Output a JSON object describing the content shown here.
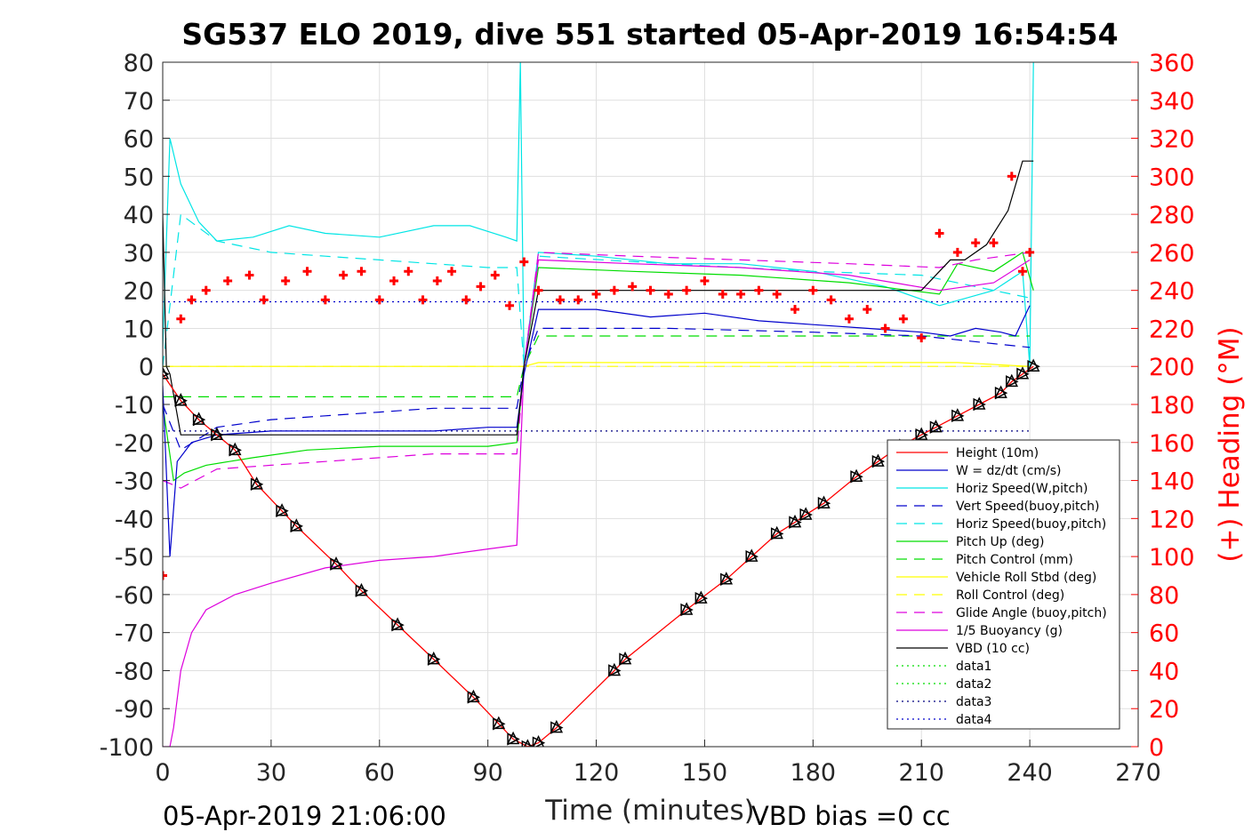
{
  "chart_data": {
    "type": "line",
    "title": "SG537 ELO 2019, dive 551 started 05-Apr-2019 16:54:54",
    "xlabel": "Time (minutes)",
    "ylabel_right": "(+) Heading (°M)",
    "xlim": [
      0,
      270
    ],
    "ylim_left": [
      -100,
      80
    ],
    "ylim_right": [
      0,
      360
    ],
    "xticks": [
      "0",
      "30",
      "60",
      "90",
      "120",
      "150",
      "180",
      "210",
      "240",
      "270"
    ],
    "yticks_left": [
      "80",
      "70",
      "60",
      "50",
      "40",
      "30",
      "20",
      "10",
      "0",
      "-10",
      "-20",
      "-30",
      "-40",
      "-50",
      "-60",
      "-70",
      "-80",
      "-90",
      "-100"
    ],
    "yticks_right": [
      "360",
      "340",
      "320",
      "300",
      "280",
      "260",
      "240",
      "220",
      "200",
      "180",
      "160",
      "140",
      "120",
      "100",
      "80",
      "60",
      "40",
      "20",
      "0"
    ],
    "grid": true,
    "legend_position": "lower-right",
    "footer_left": "05-Apr-2019 21:06:00",
    "footer_right": "VBD bias =0 cc",
    "colors": {
      "height": "#ff0000",
      "w": "#0000cc",
      "horiz": "#00e5e5",
      "pitch": "#00dd00",
      "roll": "#ffff00",
      "glide": "#dd00dd",
      "buoy": "#dd00dd",
      "vbd": "#000000",
      "heading": "#ff0000",
      "data3": "#000080"
    },
    "series": [
      {
        "key": "height",
        "name": "Height (10m)",
        "color": "#ff0000",
        "dash": "",
        "x": [
          0,
          5,
          10,
          15,
          20,
          26,
          33,
          37,
          48,
          55,
          65,
          75,
          86,
          93,
          97,
          101,
          104,
          109,
          125,
          128,
          145,
          149,
          156,
          163,
          170,
          175,
          178,
          183,
          192,
          198,
          204,
          210,
          214,
          220,
          226,
          232,
          235,
          238,
          241
        ],
        "y": [
          -2,
          -9,
          -14,
          -18,
          -22,
          -31,
          -38,
          -42,
          -52,
          -59,
          -68,
          -77,
          -87,
          -94,
          -98,
          -100,
          -99,
          -95,
          -80,
          -77,
          -64,
          -61,
          -56,
          -50,
          -44,
          -41,
          -39,
          -36,
          -29,
          -25,
          -21,
          -18,
          -16,
          -13,
          -10,
          -7,
          -4,
          -2,
          0
        ]
      },
      {
        "key": "w",
        "name": "W = dz/dt (cm/s)",
        "color": "#0000cc",
        "dash": "",
        "x": [
          0,
          2,
          4,
          8,
          15,
          30,
          45,
          60,
          75,
          90,
          98,
          100,
          104,
          120,
          135,
          150,
          165,
          180,
          195,
          210,
          218,
          225,
          232,
          236,
          240
        ],
        "y": [
          -5,
          -50,
          -25,
          -20,
          -18,
          -17,
          -17,
          -17,
          -17,
          -16,
          -16,
          -2,
          15,
          15,
          13,
          14,
          12,
          11,
          10,
          9,
          8,
          10,
          9,
          8,
          16
        ]
      },
      {
        "key": "horiz_w",
        "name": "Horiz Speed(W,pitch)",
        "color": "#00e5e5",
        "dash": "",
        "x": [
          0,
          2,
          5,
          10,
          15,
          25,
          35,
          45,
          60,
          75,
          85,
          95,
          98,
          99,
          100,
          104,
          120,
          140,
          160,
          180,
          200,
          215,
          230,
          238,
          240,
          241
        ],
        "y": [
          5,
          60,
          48,
          38,
          33,
          34,
          37,
          35,
          34,
          37,
          37,
          34,
          33,
          80,
          0,
          30,
          29,
          27,
          27,
          25,
          21,
          16,
          20,
          25,
          0,
          80
        ]
      },
      {
        "key": "vert_buoy",
        "name": "Vert Speed(buoy,pitch)",
        "color": "#0000cc",
        "dash": "12,8",
        "x": [
          0,
          5,
          15,
          30,
          45,
          60,
          75,
          90,
          98,
          100,
          104,
          140,
          180,
          210,
          230,
          240
        ],
        "y": [
          -10,
          -22,
          -16,
          -14,
          -13,
          -12,
          -11,
          -11,
          -11,
          0,
          10,
          10,
          9,
          8,
          6,
          5
        ]
      },
      {
        "key": "horiz_buoy",
        "name": "Horiz Speed(buoy,pitch)",
        "color": "#00e5e5",
        "dash": "12,8",
        "x": [
          0,
          5,
          15,
          30,
          45,
          60,
          75,
          90,
          98,
          100,
          104,
          140,
          180,
          210,
          230,
          240
        ],
        "y": [
          0,
          40,
          33,
          30,
          29,
          28,
          27,
          26,
          26,
          0,
          29,
          27,
          25,
          24,
          20,
          18
        ]
      },
      {
        "key": "pitch",
        "name": "Pitch Up (deg)",
        "color": "#00dd00",
        "dash": "",
        "x": [
          0,
          3,
          6,
          12,
          25,
          40,
          60,
          75,
          90,
          98,
          100,
          104,
          130,
          160,
          190,
          215,
          220,
          230,
          238,
          241
        ],
        "y": [
          -10,
          -30,
          -28,
          -26,
          -24,
          -22,
          -21,
          -21,
          -21,
          -20,
          0,
          26,
          25,
          24,
          22,
          19,
          27,
          25,
          30,
          20
        ]
      },
      {
        "key": "pitch_ctrl",
        "name": "Pitch Control (mm)",
        "color": "#00dd00",
        "dash": "12,8",
        "x": [
          0,
          5,
          98,
          100,
          104,
          240
        ],
        "y": [
          -8,
          -8,
          -8,
          0,
          8,
          8
        ]
      },
      {
        "key": "roll",
        "name": "Vehicle Roll Stbd (deg)",
        "color": "#ffff00",
        "dash": "",
        "x": [
          0,
          8,
          30,
          60,
          90,
          98,
          100,
          104,
          130,
          160,
          190,
          220,
          240
        ],
        "y": [
          0,
          0,
          0,
          0,
          0,
          0,
          0,
          1,
          1,
          1,
          1,
          1,
          0
        ]
      },
      {
        "key": "roll_ctrl",
        "name": "Roll Control (deg)",
        "color": "#ffff00",
        "dash": "12,8",
        "x": [
          0,
          240
        ],
        "y": [
          0,
          0
        ]
      },
      {
        "key": "glide",
        "name": "Glide Angle (buoy,pitch)",
        "color": "#dd00dd",
        "dash": "12,8",
        "x": [
          0,
          5,
          15,
          30,
          45,
          60,
          75,
          90,
          98,
          100,
          104,
          130,
          160,
          190,
          215,
          225,
          240
        ],
        "y": [
          -30,
          -32,
          -27,
          -26,
          -25,
          -24,
          -23,
          -23,
          -23,
          0,
          30,
          29,
          28,
          27,
          26,
          28,
          30
        ]
      },
      {
        "key": "buoy",
        "name": "1/5 Buoyancy (g)",
        "color": "#dd00dd",
        "dash": "",
        "x": [
          0,
          2,
          3,
          5,
          8,
          12,
          20,
          30,
          45,
          60,
          75,
          90,
          98,
          100,
          104,
          130,
          160,
          190,
          215,
          230,
          240
        ],
        "y": [
          -100,
          -100,
          -95,
          -80,
          -70,
          -64,
          -60,
          -57,
          -53,
          -51,
          -50,
          -48,
          -47,
          0,
          28,
          27,
          26,
          24,
          20,
          22,
          28
        ]
      },
      {
        "key": "vbd",
        "name": "VBD (10 cc)",
        "color": "#000000",
        "dash": "",
        "x": [
          0,
          1,
          2,
          5,
          98,
          100,
          104,
          125,
          210,
          218,
          222,
          228,
          234,
          238,
          241
        ],
        "y": [
          40,
          0,
          -2,
          -18,
          -18,
          0,
          20,
          20,
          20,
          28,
          28,
          32,
          41,
          54,
          54
        ]
      },
      {
        "key": "data3",
        "name": "data3",
        "color": "#000080",
        "dash": "2,4",
        "x": [
          0,
          240
        ],
        "y": [
          -17,
          -17
        ]
      },
      {
        "key": "data4",
        "name": "data4",
        "color": "#0000cc",
        "dash": "2,4",
        "x": [
          0,
          240
        ],
        "y": [
          17,
          17
        ]
      }
    ],
    "heading": {
      "name": "(+) Heading (°M)",
      "color": "#ff0000",
      "x": [
        0,
        5,
        8,
        12,
        18,
        24,
        28,
        34,
        40,
        45,
        50,
        55,
        60,
        64,
        68,
        72,
        76,
        80,
        84,
        88,
        92,
        96,
        100,
        104,
        110,
        115,
        120,
        125,
        130,
        135,
        140,
        145,
        150,
        155,
        160,
        165,
        170,
        175,
        180,
        185,
        190,
        195,
        200,
        205,
        210,
        215,
        220,
        225,
        230,
        235,
        238,
        240
      ],
      "y": [
        90,
        225,
        235,
        240,
        245,
        248,
        235,
        245,
        250,
        235,
        248,
        250,
        235,
        245,
        250,
        235,
        245,
        250,
        235,
        242,
        248,
        232,
        255,
        240,
        235,
        235,
        238,
        240,
        242,
        240,
        238,
        240,
        245,
        238,
        238,
        240,
        238,
        230,
        240,
        235,
        225,
        230,
        220,
        225,
        215,
        270,
        260,
        265,
        265,
        300,
        250,
        260
      ]
    },
    "legend_entries": [
      "Height (10m)",
      "W = dz/dt (cm/s)",
      "Horiz Speed(W,pitch)",
      "Vert Speed(buoy,pitch)",
      "Horiz Speed(buoy,pitch)",
      "Pitch Up (deg)",
      "Pitch Control (mm)",
      "Vehicle Roll Stbd (deg)",
      "Roll Control (deg)",
      "Glide Angle (buoy,pitch)",
      "1/5 Buoyancy (g)",
      "VBD (10 cc)",
      "data1",
      "data2",
      "data3",
      "data4"
    ],
    "legend_styles": [
      {
        "color": "#ff0000",
        "dash": ""
      },
      {
        "color": "#0000cc",
        "dash": ""
      },
      {
        "color": "#00e5e5",
        "dash": ""
      },
      {
        "color": "#0000cc",
        "dash": "12,8"
      },
      {
        "color": "#00e5e5",
        "dash": "12,8"
      },
      {
        "color": "#00dd00",
        "dash": ""
      },
      {
        "color": "#00dd00",
        "dash": "12,8"
      },
      {
        "color": "#ffff00",
        "dash": ""
      },
      {
        "color": "#ffff00",
        "dash": "12,8"
      },
      {
        "color": "#dd00dd",
        "dash": "12,8"
      },
      {
        "color": "#dd00dd",
        "dash": ""
      },
      {
        "color": "#000000",
        "dash": ""
      },
      {
        "color": "#00dd00",
        "dash": "2,4"
      },
      {
        "color": "#00dd00",
        "dash": "2,4"
      },
      {
        "color": "#000080",
        "dash": "2,4"
      },
      {
        "color": "#0000cc",
        "dash": "2,4"
      }
    ]
  }
}
